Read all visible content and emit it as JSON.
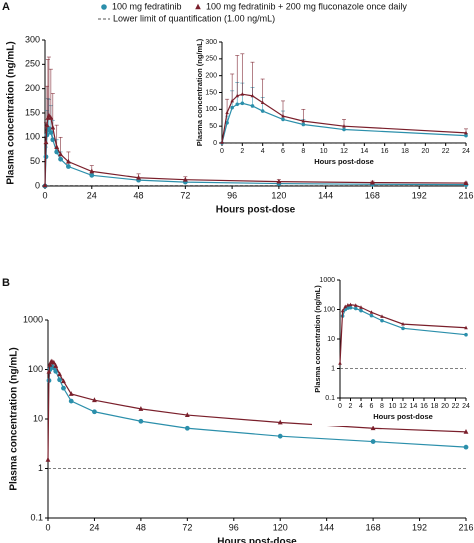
{
  "chart_data": [
    {
      "type": "line",
      "panel": "A",
      "x_label": "Hours post-dose",
      "y_label": "Plasma concentration (ng/mL)",
      "lloq": 1,
      "lloq_label": "Lower limit of quantification (1.00 ng/mL)",
      "x": [
        0,
        0.5,
        1,
        1.5,
        2,
        3,
        4,
        6,
        8,
        12,
        24,
        48,
        72,
        120,
        168,
        216
      ],
      "series": [
        {
          "name": "100 mg fedratinib",
          "color": "#2b8fab",
          "marker": "circle",
          "values": [
            0,
            60,
            105,
            115,
            118,
            110,
            95,
            70,
            55,
            40,
            22,
            12,
            8,
            5,
            3.5,
            2.8
          ],
          "errors": [
            0,
            20,
            50,
            65,
            60,
            55,
            40,
            25,
            15,
            10,
            6,
            4,
            3,
            2,
            1.5,
            1
          ]
        },
        {
          "name": "100 mg fedratinib + 200 mg fluconazole once daily",
          "color": "#7a1f2b",
          "marker": "triangle",
          "values": [
            1.5,
            90,
            125,
            140,
            145,
            140,
            120,
            80,
            65,
            50,
            30,
            17,
            13,
            9,
            7,
            6
          ],
          "errors": [
            0,
            40,
            80,
            120,
            120,
            100,
            70,
            45,
            35,
            20,
            12,
            8,
            6,
            4,
            3,
            2
          ]
        }
      ],
      "xlim": [
        0,
        216
      ],
      "xticks": [
        0,
        24,
        48,
        72,
        96,
        120,
        144,
        168,
        192,
        216
      ],
      "ylim": [
        0,
        300
      ],
      "yticks": [
        0,
        50,
        100,
        150,
        200,
        250,
        300
      ],
      "inset": {
        "x_label": "Hours post-dose",
        "y_label": "Plasma concentration (ng/mL)",
        "xlim": [
          0,
          24
        ],
        "xticks": [
          0,
          2,
          4,
          6,
          8,
          10,
          12,
          14,
          16,
          18,
          20,
          22,
          24
        ],
        "ylim": [
          0,
          300
        ],
        "yticks": [
          0,
          50,
          100,
          150,
          200,
          250,
          300
        ]
      }
    },
    {
      "type": "line",
      "panel": "B",
      "x_label": "Hours post-dose",
      "y_label": "Plasma concentration (ng/mL)",
      "lloq": 1,
      "log_y": true,
      "x": [
        0,
        0.5,
        1,
        1.5,
        2,
        3,
        4,
        6,
        8,
        12,
        24,
        48,
        72,
        120,
        168,
        216
      ],
      "series": [
        {
          "color": "#2b8fab",
          "marker": "circle",
          "values": [
            null,
            60,
            100,
            112,
            115,
            108,
            92,
            62,
            42,
            23,
            14,
            9,
            6.5,
            4.5,
            3.5,
            2.7
          ]
        },
        {
          "color": "#7a1f2b",
          "marker": "triangle",
          "values": [
            1.5,
            90,
            125,
            140,
            145,
            138,
            118,
            80,
            58,
            32,
            24,
            16,
            12,
            8.5,
            6.5,
            5.5
          ]
        }
      ],
      "xlim": [
        0,
        216
      ],
      "xticks": [
        0,
        24,
        48,
        72,
        96,
        120,
        144,
        168,
        192,
        216
      ],
      "ylim": [
        0.1,
        1000
      ],
      "yticks": [
        0.1,
        1,
        10,
        100,
        1000
      ],
      "inset": {
        "x_label": "Hours post-dose",
        "y_label": "Plasma concentration (ng/mL)",
        "xlim": [
          0,
          24
        ],
        "xticks": [
          0,
          2,
          4,
          6,
          8,
          10,
          12,
          14,
          16,
          18,
          20,
          22,
          24
        ],
        "ylim": [
          0.1,
          1000
        ],
        "yticks": [
          0.1,
          1,
          10,
          100,
          1000
        ]
      }
    }
  ]
}
